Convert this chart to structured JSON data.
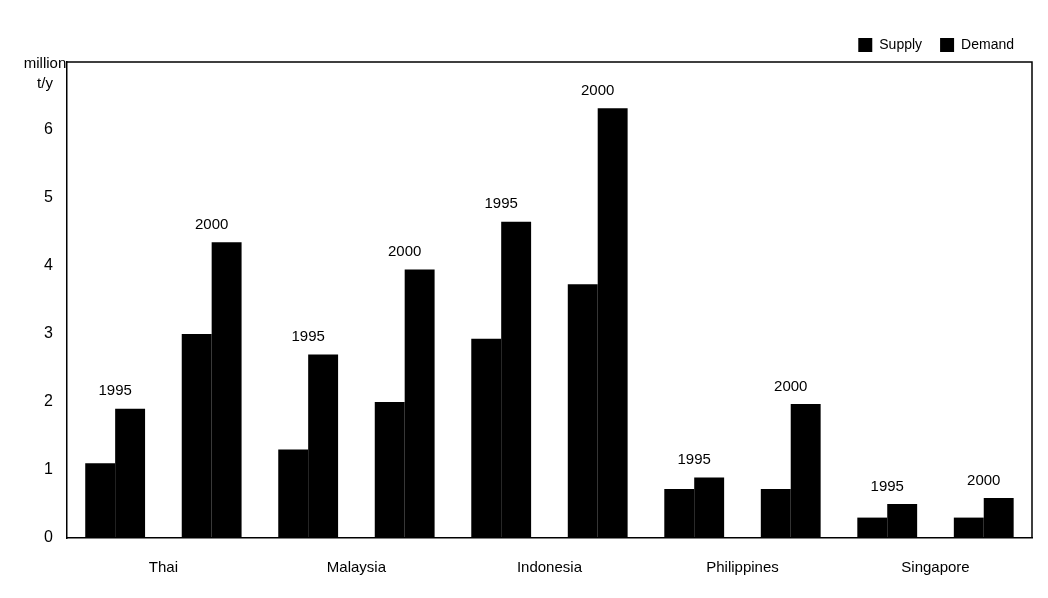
{
  "chart_data": {
    "type": "bar",
    "ylabel": "million t/y",
    "categories": [
      "1995",
      "2000",
      "1995",
      "2000",
      "1995",
      "2000",
      "1995",
      "2000",
      "1995",
      "2000"
    ],
    "series": [
      {
        "name": "Supply",
        "color": "#000000",
        "values": [
          1.1,
          3.0,
          1.3,
          2.0,
          2.93,
          3.73,
          0.72,
          0.72,
          0.3,
          0.3
        ]
      },
      {
        "name": "Demand",
        "color": "#000000",
        "values": [
          1.9,
          4.35,
          2.7,
          3.95,
          4.65,
          6.32,
          0.89,
          1.97,
          0.5,
          0.59
        ]
      }
    ],
    "annotations": [
      "Thai",
      "Malaysia",
      "Indonesia",
      "Philippines",
      "Singapore"
    ],
    "ylim": [
      0,
      7
    ],
    "yticks": [
      0,
      1,
      2,
      3,
      4,
      5,
      6
    ],
    "grid": false,
    "legend": "top right"
  }
}
